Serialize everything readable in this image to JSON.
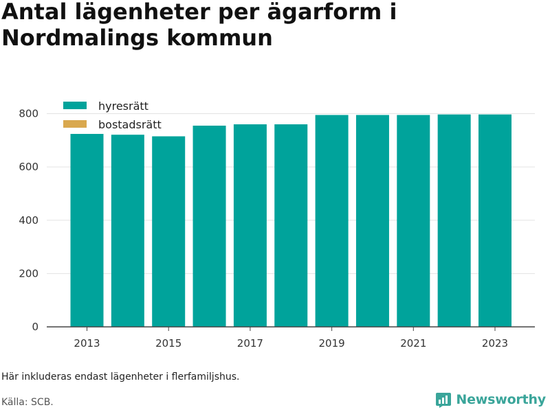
{
  "title": "Antal lägenheter per ägarform i Nordmalings kommun",
  "footnote": "Här inkluderas endast lägenheter i flerfamiljshus.",
  "source": "Källa: SCB.",
  "brand": {
    "name": "Newsworthy",
    "icon": "newsworthy-logo-icon",
    "color": "#3aa59a"
  },
  "chart_data": {
    "type": "bar",
    "stacked": true,
    "x": [
      2013,
      2014,
      2015,
      2016,
      2017,
      2018,
      2019,
      2020,
      2021,
      2022,
      2023
    ],
    "series": [
      {
        "name": "hyresrätt",
        "color": "#00a39b",
        "values": [
          724,
          721,
          715,
          755,
          760,
          760,
          795,
          795,
          795,
          797,
          797
        ]
      },
      {
        "name": "bostadsrätt",
        "color": "#d9a84e",
        "values": [
          0,
          0,
          0,
          0,
          0,
          0,
          0,
          0,
          0,
          0,
          0
        ]
      }
    ],
    "x_ticks": [
      "2013",
      "2015",
      "2017",
      "2019",
      "2021",
      "2023"
    ],
    "y_ticks": [
      "0",
      "200",
      "400",
      "600",
      "800"
    ],
    "ylim": [
      0,
      840
    ],
    "grid": true,
    "legend_position": "top-left"
  }
}
